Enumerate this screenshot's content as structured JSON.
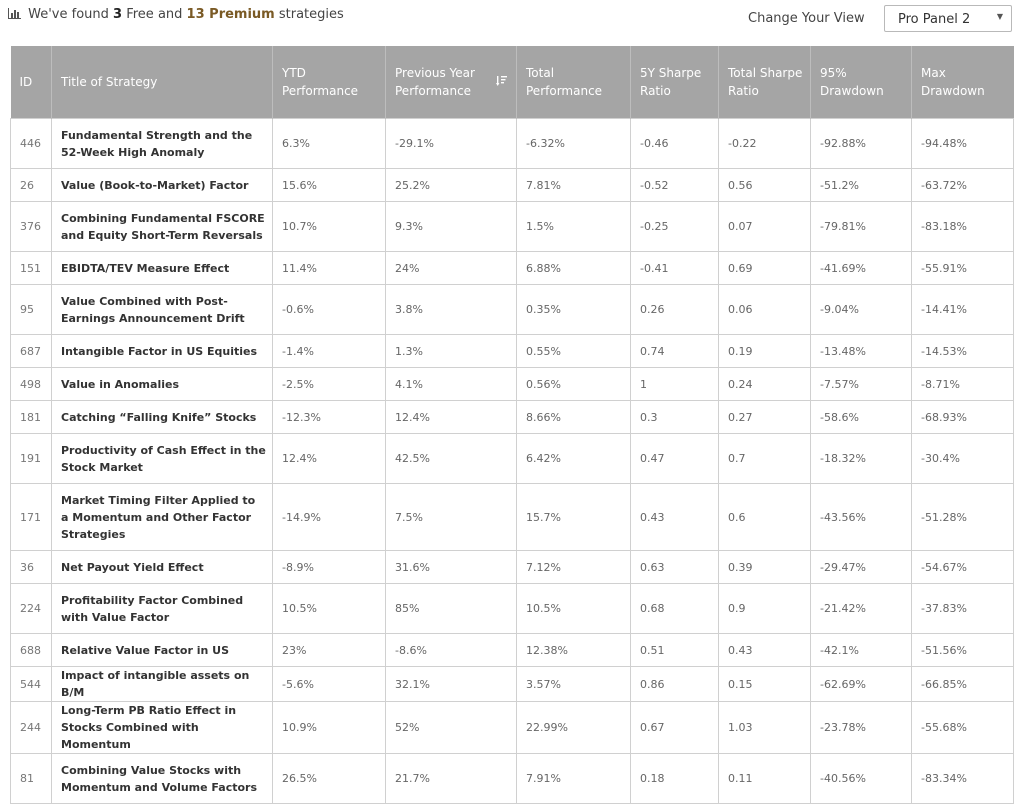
{
  "summary": {
    "prefix": "We've found",
    "free_count": "3",
    "free_label": "Free and",
    "premium_count": "13 Premium",
    "suffix": "strategies"
  },
  "view": {
    "label": "Change Your View",
    "selected": "Pro Panel 2"
  },
  "table": {
    "headers": {
      "id": "ID",
      "title": "Title of Strategy",
      "ytd": "YTD Performance",
      "prev": "Previous Year Performance",
      "total": "Total Performance",
      "sharpe5": "5Y Sharpe Ratio",
      "sharpe_total": "Total Sharpe Ratio",
      "dd95": "95% Drawdown",
      "ddmax": "Max Drawdown"
    },
    "rows": [
      {
        "id": "446",
        "title": "Fundamental Strength and the 52-Week High Anomaly",
        "ytd": "6.3%",
        "prev": "-29.1%",
        "total": "-6.32%",
        "sharpe5": "-0.46",
        "sharpe_total": "-0.22",
        "dd95": "-92.88%",
        "ddmax": "-94.48%"
      },
      {
        "id": "26",
        "title": "Value (Book-to-Market) Factor",
        "ytd": "15.6%",
        "prev": "25.2%",
        "total": "7.81%",
        "sharpe5": "-0.52",
        "sharpe_total": "0.56",
        "dd95": "-51.2%",
        "ddmax": "-63.72%"
      },
      {
        "id": "376",
        "title": "Combining Fundamental FSCORE and Equity Short-Term Reversals",
        "ytd": "10.7%",
        "prev": "9.3%",
        "total": "1.5%",
        "sharpe5": "-0.25",
        "sharpe_total": "0.07",
        "dd95": "-79.81%",
        "ddmax": "-83.18%"
      },
      {
        "id": "151",
        "title": "EBIDTA/TEV Measure Effect",
        "ytd": "11.4%",
        "prev": "24%",
        "total": "6.88%",
        "sharpe5": "-0.41",
        "sharpe_total": "0.69",
        "dd95": "-41.69%",
        "ddmax": "-55.91%"
      },
      {
        "id": "95",
        "title": "Value Combined with Post-Earnings Announcement Drift",
        "ytd": "-0.6%",
        "prev": "3.8%",
        "total": "0.35%",
        "sharpe5": "0.26",
        "sharpe_total": "0.06",
        "dd95": "-9.04%",
        "ddmax": "-14.41%"
      },
      {
        "id": "687",
        "title": "Intangible Factor in US Equities",
        "ytd": "-1.4%",
        "prev": "1.3%",
        "total": "0.55%",
        "sharpe5": "0.74",
        "sharpe_total": "0.19",
        "dd95": "-13.48%",
        "ddmax": "-14.53%"
      },
      {
        "id": "498",
        "title": "Value in Anomalies",
        "ytd": "-2.5%",
        "prev": "4.1%",
        "total": "0.56%",
        "sharpe5": "1",
        "sharpe_total": "0.24",
        "dd95": "-7.57%",
        "ddmax": "-8.71%"
      },
      {
        "id": "181",
        "title": "Catching “Falling Knife” Stocks",
        "ytd": "-12.3%",
        "prev": "12.4%",
        "total": "8.66%",
        "sharpe5": "0.3",
        "sharpe_total": "0.27",
        "dd95": "-58.6%",
        "ddmax": "-68.93%"
      },
      {
        "id": "191",
        "title": "Productivity of Cash Effect in the Stock Market",
        "ytd": "12.4%",
        "prev": "42.5%",
        "total": "6.42%",
        "sharpe5": "0.47",
        "sharpe_total": "0.7",
        "dd95": "-18.32%",
        "ddmax": "-30.4%"
      },
      {
        "id": "171",
        "title": "Market Timing Filter Applied to a Momentum and Other Factor Strategies",
        "ytd": "-14.9%",
        "prev": "7.5%",
        "total": "15.7%",
        "sharpe5": "0.43",
        "sharpe_total": "0.6",
        "dd95": "-43.56%",
        "ddmax": "-51.28%"
      },
      {
        "id": "36",
        "title": "Net Payout Yield Effect",
        "ytd": "-8.9%",
        "prev": "31.6%",
        "total": "7.12%",
        "sharpe5": "0.63",
        "sharpe_total": "0.39",
        "dd95": "-29.47%",
        "ddmax": "-54.67%"
      },
      {
        "id": "224",
        "title": "Profitability Factor Combined with Value Factor",
        "ytd": "10.5%",
        "prev": "85%",
        "total": "10.5%",
        "sharpe5": "0.68",
        "sharpe_total": "0.9",
        "dd95": "-21.42%",
        "ddmax": "-37.83%"
      },
      {
        "id": "688",
        "title": "Relative Value Factor in US",
        "ytd": "23%",
        "prev": "-8.6%",
        "total": "12.38%",
        "sharpe5": "0.51",
        "sharpe_total": "0.43",
        "dd95": "-42.1%",
        "ddmax": "-51.56%"
      },
      {
        "id": "544",
        "title": "Impact of intangible assets on B/M",
        "ytd": "-5.6%",
        "prev": "32.1%",
        "total": "3.57%",
        "sharpe5": "0.86",
        "sharpe_total": "0.15",
        "dd95": "-62.69%",
        "ddmax": "-66.85%"
      },
      {
        "id": "244",
        "title": "Long-Term PB Ratio Effect in Stocks Combined with Momentum",
        "ytd": "10.9%",
        "prev": "52%",
        "total": "22.99%",
        "sharpe5": "0.67",
        "sharpe_total": "1.03",
        "dd95": "-23.78%",
        "ddmax": "-55.68%"
      },
      {
        "id": "81",
        "title": "Combining Value Stocks with Momentum and Volume Factors",
        "ytd": "26.5%",
        "prev": "21.7%",
        "total": "7.91%",
        "sharpe5": "0.18",
        "sharpe_total": "0.11",
        "dd95": "-40.56%",
        "ddmax": "-83.34%"
      }
    ]
  },
  "icons": {
    "summary": "bar-chart-icon",
    "sort": "sort-descending-icon",
    "select": "caret-down-icon"
  },
  "colors": {
    "header_bg": "#a5a5a5",
    "premium_accent": "#7a5a25"
  }
}
